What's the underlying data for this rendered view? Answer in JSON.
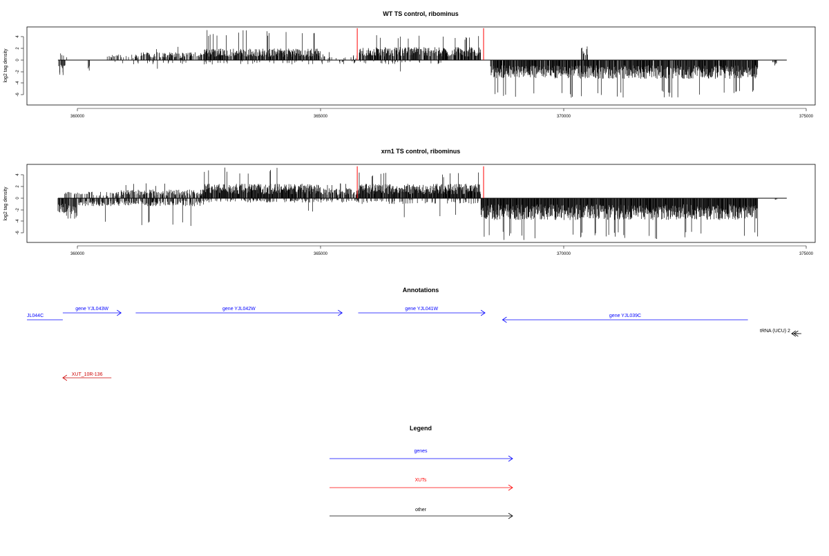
{
  "chart_data": [
    {
      "type": "bar",
      "title": "WT TS control, ribominus",
      "xlabel": "",
      "ylabel": "log2 tag density",
      "xlim": [
        359000,
        375000
      ],
      "xticks": [
        "360000",
        "365000",
        "370000",
        "375000"
      ],
      "ylim": [
        -7.5,
        6
      ],
      "yticks": [
        "4",
        "2",
        "0",
        "-2",
        "-4",
        "-6"
      ],
      "grid": false,
      "coverage": [
        {
          "strand": "plus",
          "start": 359600,
          "end": 359800,
          "typical": 1.0,
          "peak": 1.9,
          "density": 0.2
        },
        {
          "strand": "plus",
          "start": 360600,
          "end": 361300,
          "typical": 0.8,
          "peak": 1.4,
          "density": 0.3
        },
        {
          "strand": "plus",
          "start": 361300,
          "end": 362600,
          "typical": 1.1,
          "peak": 2.3,
          "density": 0.6
        },
        {
          "strand": "plus",
          "start": 362600,
          "end": 365000,
          "typical": 1.6,
          "peak": 5.2,
          "density": 0.85
        },
        {
          "strand": "plus",
          "start": 365000,
          "end": 365800,
          "typical": 0.8,
          "peak": 1.5,
          "density": 0.2
        },
        {
          "strand": "plus",
          "start": 365800,
          "end": 368300,
          "typical": 1.8,
          "peak": 4.3,
          "density": 0.85
        },
        {
          "strand": "plus",
          "start": 370350,
          "end": 370500,
          "typical": 2.0,
          "peak": 3.0,
          "density": 0.5
        },
        {
          "strand": "minus",
          "start": 359600,
          "end": 359750,
          "typical": -1.8,
          "peak": -2.7,
          "density": 0.6
        },
        {
          "strand": "minus",
          "start": 360200,
          "end": 360250,
          "typical": -1.5,
          "peak": -2.0,
          "density": 0.3
        },
        {
          "strand": "minus",
          "start": 360600,
          "end": 365800,
          "typical": -0.6,
          "peak": -1.6,
          "density": 0.1
        },
        {
          "strand": "minus",
          "start": 365800,
          "end": 367500,
          "typical": -0.6,
          "peak": -2.0,
          "density": 0.1
        },
        {
          "strand": "minus",
          "start": 368500,
          "end": 374000,
          "typical": -2.6,
          "peak": -6.5,
          "density": 0.95
        },
        {
          "strand": "minus",
          "start": 374300,
          "end": 374400,
          "typical": -0.7,
          "peak": -1.0,
          "density": 0.4
        }
      ],
      "markers": [
        {
          "x": 365760,
          "y": 5.5,
          "color": "#ff0000"
        },
        {
          "x": 368360,
          "y": 5.5,
          "color": "#ff0000"
        }
      ]
    },
    {
      "type": "bar",
      "title": "xrn1 TS control, ribominus",
      "xlabel": "",
      "ylabel": "log2 tag density",
      "xlim": [
        359000,
        375000
      ],
      "xticks": [
        "360000",
        "365000",
        "370000",
        "375000"
      ],
      "ylim": [
        -7.5,
        6
      ],
      "yticks": [
        "4",
        "2",
        "0",
        "-2",
        "-4",
        "-6"
      ],
      "grid": false,
      "coverage": [
        {
          "strand": "plus",
          "start": 359600,
          "end": 360800,
          "typical": 0.9,
          "peak": 1.8,
          "density": 0.25
        },
        {
          "strand": "plus",
          "start": 360800,
          "end": 362600,
          "typical": 1.2,
          "peak": 2.6,
          "density": 0.6
        },
        {
          "strand": "plus",
          "start": 362600,
          "end": 365000,
          "typical": 2.0,
          "peak": 5.3,
          "density": 0.95
        },
        {
          "strand": "plus",
          "start": 365000,
          "end": 365800,
          "typical": 1.4,
          "peak": 2.7,
          "density": 0.7
        },
        {
          "strand": "plus",
          "start": 365800,
          "end": 368300,
          "typical": 2.0,
          "peak": 4.5,
          "density": 0.95
        },
        {
          "strand": "minus",
          "start": 359600,
          "end": 360000,
          "typical": -2.5,
          "peak": -3.8,
          "density": 0.8
        },
        {
          "strand": "minus",
          "start": 360000,
          "end": 362600,
          "typical": -1.1,
          "peak": -5.0,
          "density": 0.55
        },
        {
          "strand": "minus",
          "start": 362600,
          "end": 365800,
          "typical": -0.6,
          "peak": -2.3,
          "density": 0.3
        },
        {
          "strand": "minus",
          "start": 365800,
          "end": 368300,
          "typical": -0.8,
          "peak": -3.4,
          "density": 0.2
        },
        {
          "strand": "minus",
          "start": 368300,
          "end": 374000,
          "typical": -3.0,
          "peak": -7.2,
          "density": 1.0
        },
        {
          "strand": "minus",
          "start": 374300,
          "end": 374400,
          "typical": -0.3,
          "peak": -0.5,
          "density": 0.3
        }
      ],
      "markers": [
        {
          "x": 365760,
          "y": 5.5,
          "color": "#ff0000"
        },
        {
          "x": 368360,
          "y": 5.5,
          "color": "#ff0000"
        }
      ]
    }
  ],
  "annotations": {
    "title": "Annotations",
    "items": [
      {
        "label": "JL044C",
        "start": 358700,
        "end": 359700,
        "direction": "minus",
        "color": "#0000ff",
        "row": 1
      },
      {
        "label": "gene YJL043W",
        "start": 359700,
        "end": 360900,
        "direction": "plus",
        "color": "#0000ff",
        "row": 0
      },
      {
        "label": "gene YJL042W",
        "start": 361200,
        "end": 365450,
        "direction": "plus",
        "color": "#0000ff",
        "row": 0
      },
      {
        "label": "gene YJL041W",
        "start": 365780,
        "end": 368390,
        "direction": "plus",
        "color": "#0000ff",
        "row": 0
      },
      {
        "label": "gene YJL039C",
        "start": 368750,
        "end": 373800,
        "direction": "minus",
        "color": "#0000ff",
        "row": 1
      },
      {
        "label": "tRNA",
        "start": 374700,
        "end": 374850,
        "direction": "minus",
        "color": "#000000",
        "row": 2
      },
      {
        "label": "tRNA",
        "start": 374750,
        "end": 374900,
        "direction": "minus",
        "color": "#000000",
        "row": 2
      },
      {
        "label": "XUT_10R-136",
        "start": 359700,
        "end": 360700,
        "direction": "minus",
        "color": "#cc0000",
        "row": 3
      }
    ],
    "overlap_label": "tRNA (UCU) 2"
  },
  "legend": {
    "title": "Legend",
    "items": [
      {
        "label": "genes",
        "color": "#0000ff"
      },
      {
        "label": "XUTs",
        "color": "#ff0000"
      },
      {
        "label": "other",
        "color": "#000000"
      }
    ]
  }
}
